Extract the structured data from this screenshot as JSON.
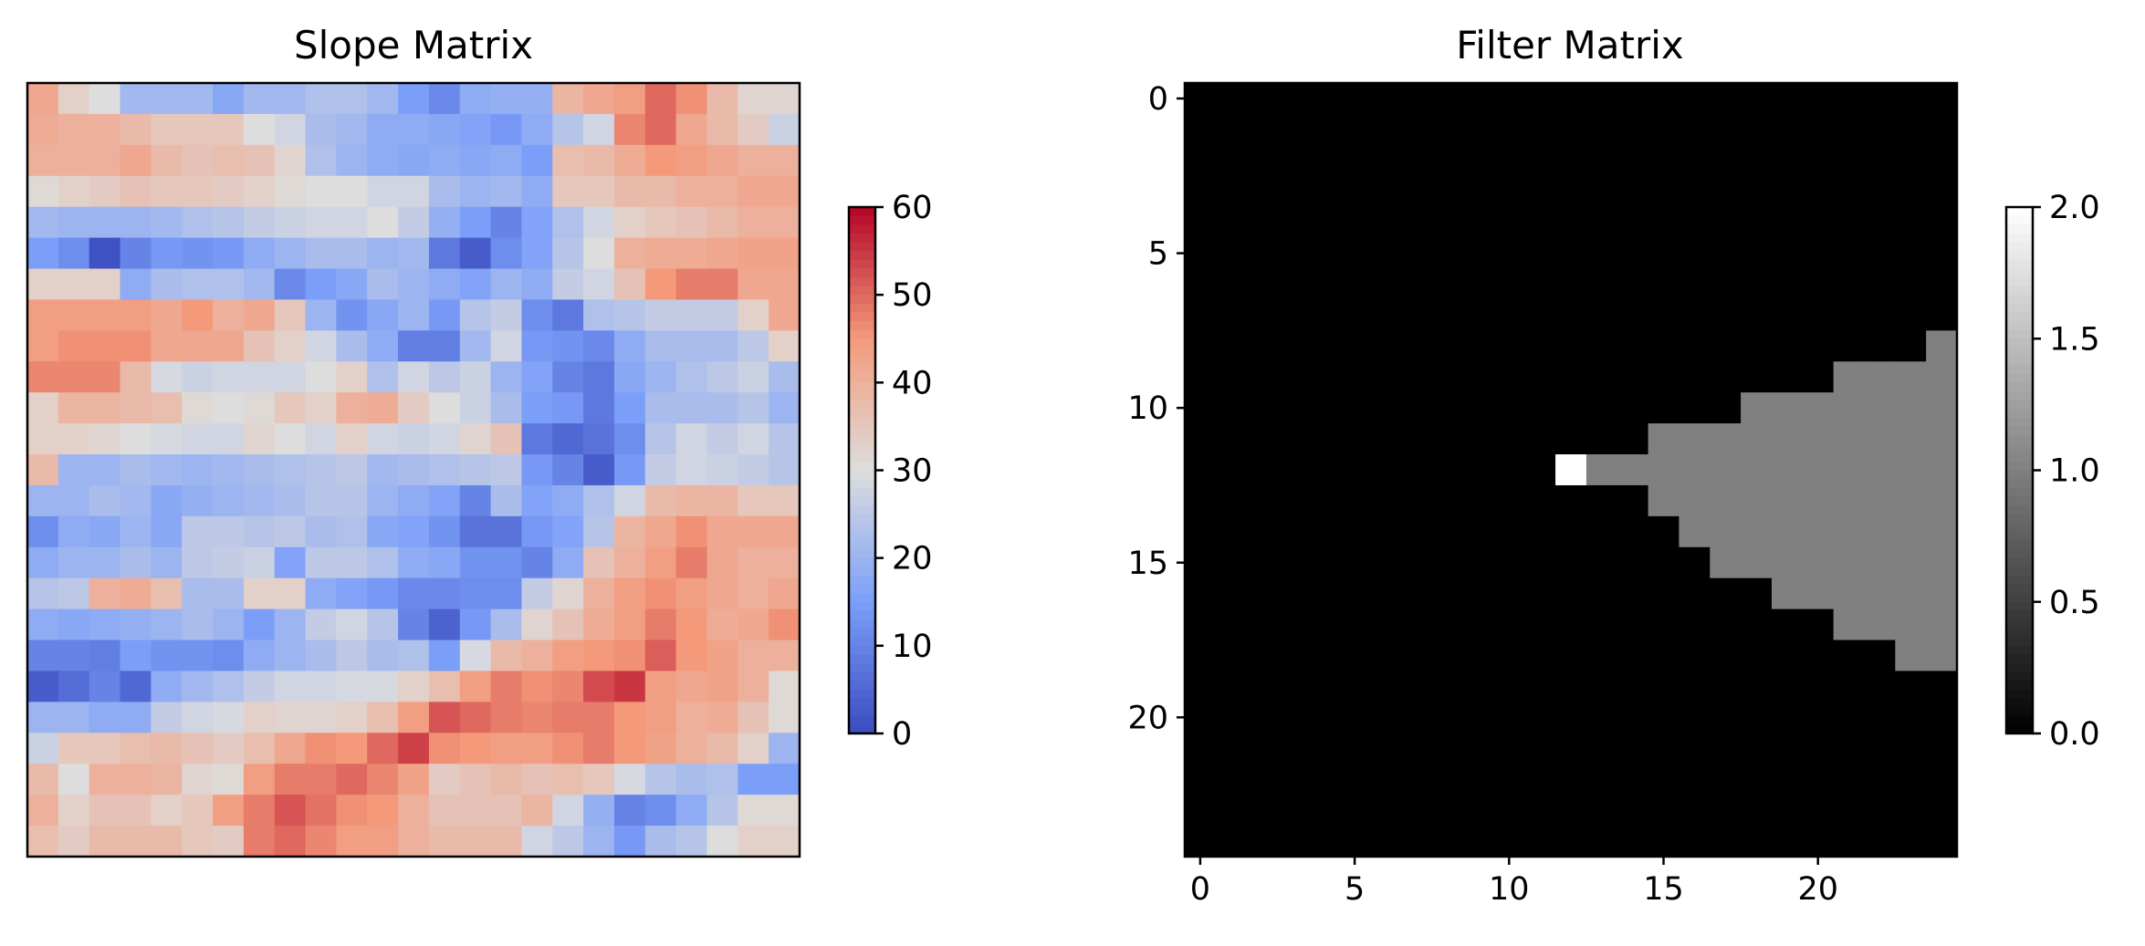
{
  "chart_data": [
    {
      "type": "heatmap",
      "title": "Slope Matrix",
      "xlabel": "",
      "ylabel": "",
      "axes_visible": false,
      "colormap": "coolwarm",
      "colorbar": {
        "min": 0,
        "max": 60,
        "ticks": [
          "60",
          "50",
          "40",
          "30",
          "20",
          "10",
          "0"
        ],
        "tick_values": [
          60,
          50,
          40,
          30,
          20,
          10,
          0
        ]
      },
      "rows": 25,
      "cols": 25,
      "values": [
        [
          42,
          33,
          30,
          21,
          21,
          21,
          17,
          21,
          21,
          23,
          23,
          21,
          15,
          11,
          18,
          19,
          19,
          39,
          42,
          44,
          50,
          46,
          38,
          32,
          32
        ],
        [
          41,
          40,
          40,
          38,
          35,
          35,
          35,
          30,
          28,
          22,
          21,
          18,
          18,
          17,
          16,
          14,
          18,
          24,
          28,
          47,
          50,
          42,
          38,
          34,
          27
        ],
        [
          40,
          40,
          40,
          42,
          38,
          36,
          37,
          36,
          32,
          23,
          20,
          18,
          17,
          18,
          17,
          18,
          15,
          37,
          38,
          41,
          45,
          44,
          42,
          40,
          40
        ],
        [
          31,
          33,
          34,
          36,
          35,
          35,
          34,
          33,
          31,
          30,
          30,
          28,
          28,
          22,
          20,
          21,
          18,
          35,
          35,
          38,
          38,
          40,
          40,
          42,
          42
        ],
        [
          21,
          20,
          20,
          20,
          21,
          23,
          24,
          26,
          27,
          28,
          28,
          30,
          26,
          19,
          15,
          10,
          16,
          23,
          28,
          33,
          35,
          36,
          38,
          40,
          40
        ],
        [
          15,
          12,
          1,
          10,
          14,
          13,
          14,
          18,
          20,
          22,
          22,
          20,
          21,
          8,
          3,
          12,
          16,
          24,
          30,
          40,
          41,
          41,
          42,
          43,
          43
        ],
        [
          33,
          33,
          33,
          18,
          22,
          23,
          23,
          21,
          11,
          15,
          17,
          22,
          20,
          18,
          16,
          20,
          18,
          26,
          28,
          36,
          45,
          48,
          48,
          42,
          42
        ],
        [
          44,
          44,
          44,
          44,
          42,
          45,
          40,
          42,
          35,
          20,
          13,
          17,
          20,
          14,
          24,
          26,
          12,
          8,
          23,
          24,
          26,
          26,
          26,
          33,
          42
        ],
        [
          44,
          46,
          46,
          46,
          42,
          42,
          42,
          36,
          33,
          28,
          22,
          18,
          9,
          9,
          21,
          28,
          14,
          13,
          11,
          18,
          22,
          22,
          22,
          25,
          33
        ],
        [
          47,
          47,
          47,
          38,
          29,
          27,
          28,
          28,
          28,
          30,
          33,
          23,
          28,
          25,
          27,
          20,
          16,
          10,
          8,
          17,
          20,
          23,
          25,
          27,
          22
        ],
        [
          33,
          39,
          39,
          38,
          37,
          31,
          30,
          31,
          35,
          33,
          40,
          41,
          34,
          30,
          27,
          22,
          15,
          14,
          8,
          15,
          22,
          22,
          22,
          24,
          20
        ],
        [
          33,
          33,
          32,
          30,
          29,
          28,
          28,
          32,
          30,
          28,
          33,
          28,
          27,
          28,
          32,
          36,
          8,
          5,
          7,
          12,
          24,
          28,
          26,
          28,
          24
        ],
        [
          38,
          20,
          20,
          22,
          21,
          20,
          21,
          22,
          23,
          24,
          25,
          21,
          22,
          23,
          24,
          25,
          14,
          10,
          3,
          14,
          26,
          28,
          27,
          26,
          24
        ],
        [
          20,
          20,
          22,
          21,
          17,
          19,
          20,
          21,
          22,
          24,
          24,
          20,
          18,
          16,
          10,
          22,
          16,
          18,
          23,
          28,
          38,
          39,
          39,
          35,
          35
        ],
        [
          12,
          18,
          17,
          20,
          17,
          25,
          25,
          24,
          25,
          22,
          23,
          17,
          16,
          13,
          7,
          7,
          14,
          16,
          24,
          39,
          42,
          46,
          42,
          42,
          42
        ],
        [
          18,
          20,
          20,
          22,
          20,
          25,
          26,
          27,
          16,
          25,
          25,
          23,
          18,
          17,
          13,
          13,
          10,
          18,
          36,
          40,
          44,
          48,
          42,
          40,
          40
        ],
        [
          24,
          25,
          40,
          41,
          37,
          22,
          22,
          33,
          33,
          18,
          16,
          14,
          11,
          11,
          12,
          12,
          26,
          32,
          40,
          44,
          46,
          44,
          42,
          40,
          42
        ],
        [
          18,
          17,
          18,
          19,
          20,
          22,
          20,
          15,
          20,
          26,
          28,
          24,
          10,
          4,
          14,
          22,
          32,
          36,
          41,
          44,
          48,
          45,
          41,
          42,
          46
        ],
        [
          10,
          10,
          9,
          15,
          13,
          13,
          12,
          18,
          20,
          22,
          25,
          22,
          23,
          15,
          29,
          38,
          40,
          44,
          45,
          46,
          51,
          45,
          43,
          40,
          40
        ],
        [
          3,
          6,
          10,
          5,
          18,
          21,
          23,
          26,
          28,
          28,
          29,
          29,
          33,
          37,
          44,
          48,
          46,
          47,
          53,
          55,
          44,
          42,
          43,
          40,
          31
        ],
        [
          20,
          20,
          18,
          18,
          26,
          28,
          29,
          33,
          32,
          32,
          33,
          37,
          44,
          52,
          50,
          48,
          47,
          48,
          48,
          45,
          44,
          40,
          41,
          36,
          31
        ],
        [
          27,
          35,
          35,
          37,
          38,
          36,
          34,
          37,
          42,
          46,
          45,
          50,
          54,
          46,
          45,
          44,
          44,
          46,
          48,
          45,
          43,
          40,
          38,
          33,
          20
        ],
        [
          38,
          30,
          40,
          40,
          39,
          32,
          31,
          44,
          48,
          48,
          50,
          47,
          43,
          34,
          36,
          38,
          36,
          37,
          35,
          29,
          24,
          22,
          23,
          15,
          15
        ],
        [
          40,
          33,
          36,
          36,
          33,
          35,
          44,
          48,
          52,
          49,
          46,
          45,
          40,
          36,
          36,
          36,
          39,
          28,
          19,
          10,
          12,
          18,
          24,
          31,
          31
        ],
        [
          37,
          34,
          38,
          38,
          38,
          35,
          34,
          48,
          50,
          47,
          44,
          44,
          40,
          38,
          38,
          38,
          28,
          25,
          20,
          14,
          22,
          24,
          30,
          33,
          33
        ]
      ]
    },
    {
      "type": "heatmap",
      "title": "Filter Matrix",
      "xlabel": "",
      "ylabel": "",
      "colormap": "gray",
      "rows": 25,
      "cols": 25,
      "xticks": [
        "0",
        "5",
        "10",
        "15",
        "20"
      ],
      "xtick_values": [
        0,
        5,
        10,
        15,
        20
      ],
      "yticks": [
        "0",
        "5",
        "10",
        "15",
        "20"
      ],
      "ytick_values": [
        0,
        5,
        10,
        15,
        20
      ],
      "colorbar": {
        "min": 0,
        "max": 2,
        "ticks": [
          "2.0",
          "1.5",
          "1.0",
          "0.5",
          "0.0"
        ],
        "tick_values": [
          2.0,
          1.5,
          1.0,
          0.5,
          0.0
        ]
      },
      "background_value": 0,
      "nonzero_rows": [
        {
          "row": 8,
          "cols": [
            [
              24,
              24,
              1
            ]
          ]
        },
        {
          "row": 9,
          "cols": [
            [
              21,
              24,
              1
            ]
          ]
        },
        {
          "row": 10,
          "cols": [
            [
              18,
              24,
              1
            ]
          ]
        },
        {
          "row": 11,
          "cols": [
            [
              15,
              24,
              1
            ]
          ]
        },
        {
          "row": 12,
          "cols": [
            [
              12,
              12,
              2
            ],
            [
              13,
              24,
              1
            ]
          ]
        },
        {
          "row": 13,
          "cols": [
            [
              15,
              24,
              1
            ]
          ]
        },
        {
          "row": 14,
          "cols": [
            [
              16,
              24,
              1
            ]
          ]
        },
        {
          "row": 15,
          "cols": [
            [
              17,
              24,
              1
            ]
          ]
        },
        {
          "row": 16,
          "cols": [
            [
              19,
              24,
              1
            ]
          ]
        },
        {
          "row": 17,
          "cols": [
            [
              21,
              24,
              1
            ]
          ]
        },
        {
          "row": 18,
          "cols": [
            [
              23,
              24,
              1
            ]
          ]
        }
      ]
    }
  ]
}
